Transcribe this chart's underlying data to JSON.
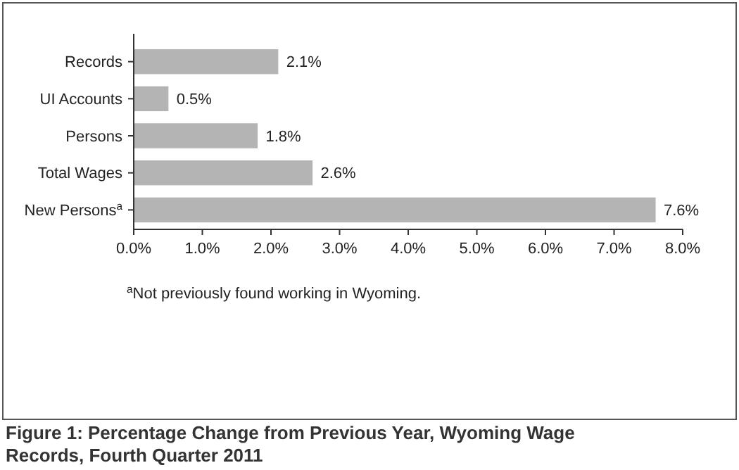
{
  "chart_data": {
    "type": "bar",
    "orientation": "horizontal",
    "title": "Figure 1: Percentage Change from Previous Year, Wyoming Wage Records, Fourth Quarter 2011",
    "categories": [
      "Records",
      "UI Accounts",
      "Persons",
      "Total Wages",
      "New Persons$^{a}$"
    ],
    "values": [
      2.1,
      0.5,
      1.8,
      2.6,
      7.6
    ],
    "value_labels": [
      "2.1%",
      "0.5%",
      "1.8%",
      "2.6%",
      "7.6%"
    ],
    "color": "#b4b4b4",
    "xlim": [
      0,
      8
    ],
    "xticks": [
      {
        "value": 0,
        "label": "0.0%"
      },
      {
        "value": 1,
        "label": "1.0%"
      },
      {
        "value": 2,
        "label": "2.0%"
      },
      {
        "value": 3,
        "label": "3.0%"
      },
      {
        "value": 4,
        "label": "4.0%"
      },
      {
        "value": 5,
        "label": "5.0%"
      },
      {
        "value": 6,
        "label": "6.0%"
      },
      {
        "value": 7,
        "label": "7.0%"
      },
      {
        "value": 8,
        "label": "8.0%"
      }
    ],
    "annotations": [
      "$^{a}$Not previously found working in Wyoming."
    ],
    "grid": false
  }
}
